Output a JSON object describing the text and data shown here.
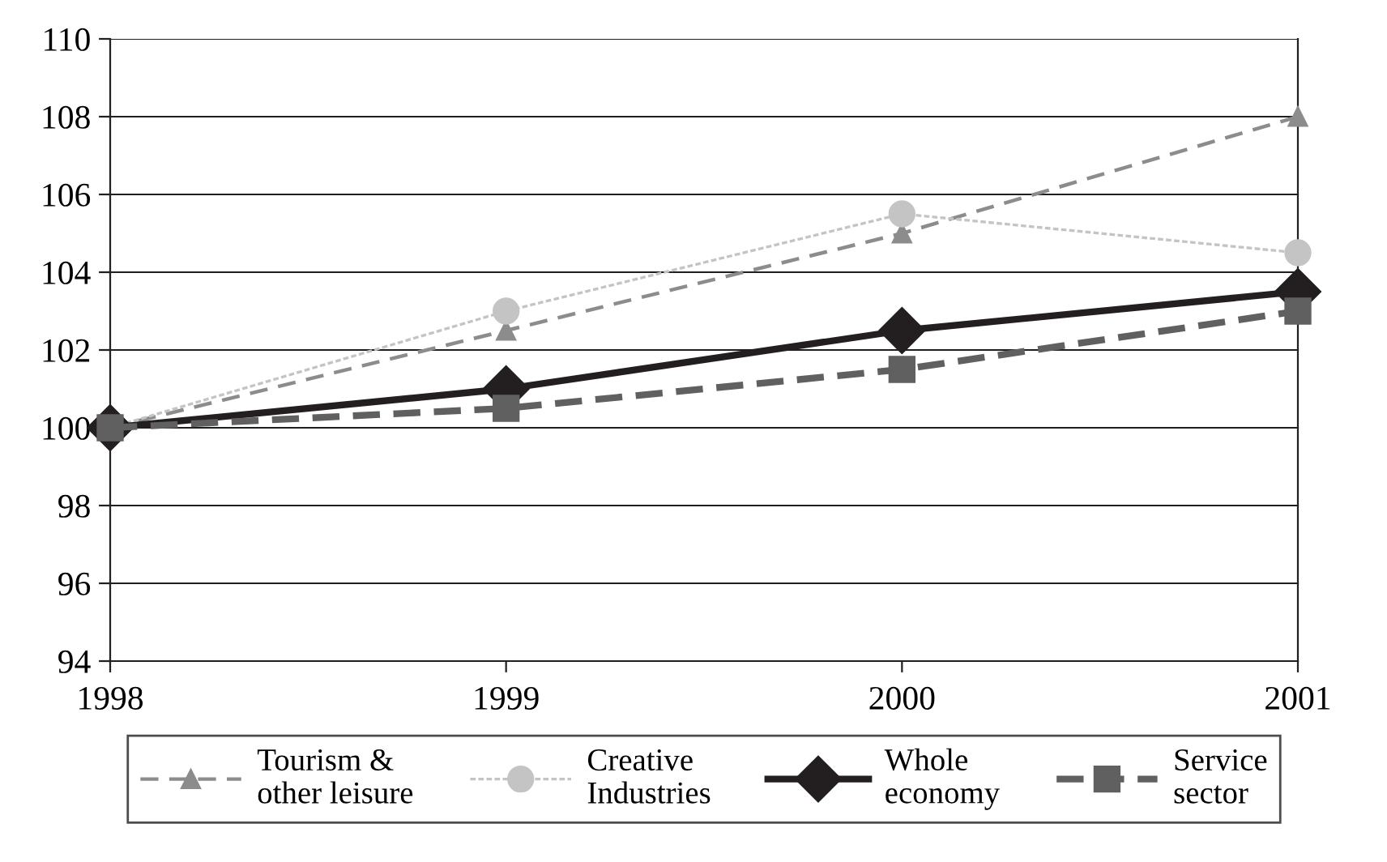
{
  "chart_data": {
    "type": "line",
    "x": [
      1998,
      1999,
      2000,
      2001
    ],
    "xlim": [
      1998,
      2001
    ],
    "xticks": [
      1998,
      1999,
      2000,
      2001
    ],
    "ylim": [
      94,
      110
    ],
    "yticks": [
      94,
      96,
      98,
      100,
      102,
      104,
      106,
      108,
      110
    ],
    "grid": "y",
    "legend": "bottom",
    "series": [
      {
        "name": "Tourism &\nother leisure",
        "color": "#8c8c8c",
        "marker": "triangle",
        "line_style": "dashed",
        "values": [
          100,
          102.5,
          105,
          108
        ]
      },
      {
        "name": "Creative\nIndustries",
        "color": "#c4c4c4",
        "marker": "circle",
        "line_style": "dotted",
        "values": [
          100,
          103,
          105.5,
          104.5
        ]
      },
      {
        "name": "Whole\neconomy",
        "color": "#231f20",
        "marker": "diamond",
        "line_style": "solid",
        "values": [
          100,
          101,
          102.5,
          103.5
        ]
      },
      {
        "name": "Service\nsector",
        "color": "#606060",
        "marker": "square",
        "line_style": "dashed",
        "values": [
          100,
          100.5,
          101.5,
          103
        ]
      }
    ]
  }
}
